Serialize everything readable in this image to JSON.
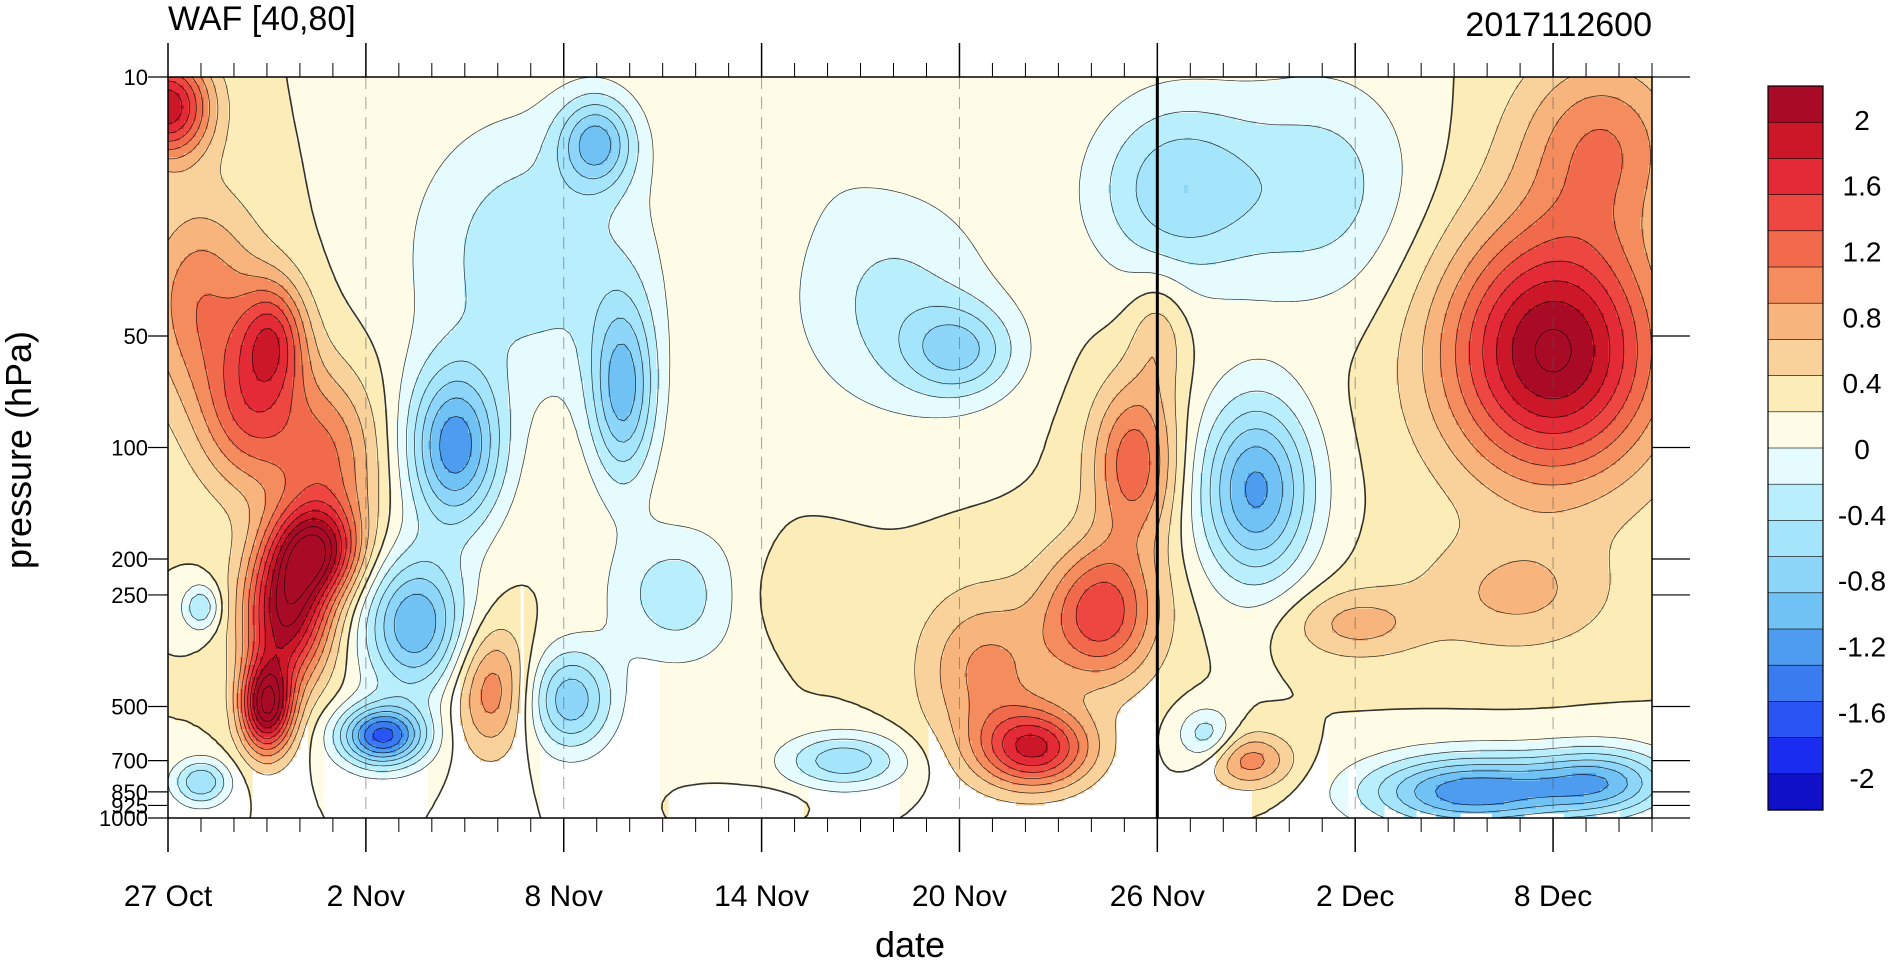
{
  "chart_data": {
    "type": "heatmap",
    "title_left": "WAF [40,80]",
    "title_right": "2017112600",
    "xlabel": "date",
    "ylabel": "pressure (hPa)",
    "x_ticks": [
      "27 Oct",
      "2 Nov",
      "8 Nov",
      "14 Nov",
      "20 Nov",
      "26 Nov",
      "2 Dec",
      "8 Dec"
    ],
    "x_tick_days": [
      0,
      6,
      12,
      18,
      24,
      30,
      36,
      42
    ],
    "x_range_days": [
      0,
      45
    ],
    "initialization_day": 30,
    "y_ticks": [
      "10",
      "50",
      "100",
      "200",
      "250",
      "500",
      "700",
      "850",
      "925",
      "1000"
    ],
    "y_tick_values": [
      10,
      50,
      100,
      200,
      250,
      500,
      700,
      850,
      925,
      1000
    ],
    "y_range": [
      10,
      1000
    ],
    "colorbar_labels": [
      "2",
      "1.6",
      "1.2",
      "0.8",
      "0.4",
      "0",
      "-0.4",
      "-0.8",
      "-1.2",
      "-1.6",
      "-2"
    ],
    "colorbar_label_values": [
      2,
      1.6,
      1.2,
      0.8,
      0.4,
      0,
      -0.4,
      -0.8,
      -1.2,
      -1.6,
      -2
    ],
    "levels": [
      -2.2,
      -2.0,
      -1.8,
      -1.6,
      -1.4,
      -1.2,
      -1.0,
      -0.8,
      -0.6,
      -0.4,
      -0.2,
      0,
      0.2,
      0.4,
      0.6,
      0.8,
      1.0,
      1.2,
      1.4,
      1.6,
      1.8,
      2.0,
      2.2
    ],
    "colors": [
      "#1010c8",
      "#1a2cf0",
      "#2a55f5",
      "#3a7cf0",
      "#4d9cf0",
      "#70c2f5",
      "#8ed6f9",
      "#a4e5fc",
      "#b9eefc",
      "#e6fbfd",
      "#fefce6",
      "#fbecb8",
      "#f9d19a",
      "#f7b47d",
      "#f48c5e",
      "#f16a4c",
      "#ee4742",
      "#e42a36",
      "#cc1729",
      "#a90b26"
    ],
    "features": [
      {
        "day": 0.0,
        "p": 12,
        "v": 1.55,
        "sx": 0.9,
        "sy": 0.22
      },
      {
        "day": 1.0,
        "p": 40,
        "v": 0.75,
        "sx": 1.3,
        "sy": 0.45
      },
      {
        "day": 2.5,
        "p": 80,
        "v": 0.9,
        "sx": 1.1,
        "sy": 0.35
      },
      {
        "day": 3.0,
        "p": 500,
        "v": 1.9,
        "sx": 0.55,
        "sy": 0.2
      },
      {
        "day": 3.6,
        "p": 280,
        "v": 1.75,
        "sx": 0.9,
        "sy": 0.3
      },
      {
        "day": 4.5,
        "p": 190,
        "v": 1.45,
        "sx": 0.9,
        "sy": 0.2
      },
      {
        "day": 3.2,
        "p": 50,
        "v": 0.95,
        "sx": 0.7,
        "sy": 0.25
      },
      {
        "day": 4.8,
        "p": 110,
        "v": 0.8,
        "sx": 1.1,
        "sy": 0.4
      },
      {
        "day": 1.0,
        "p": 270,
        "v": -0.6,
        "sx": 0.4,
        "sy": 0.1
      },
      {
        "day": 1.0,
        "p": 800,
        "v": -0.8,
        "sx": 0.6,
        "sy": 0.1
      },
      {
        "day": 6.5,
        "p": 600,
        "v": -1.65,
        "sx": 0.9,
        "sy": 0.13
      },
      {
        "day": 7.5,
        "p": 300,
        "v": -1.2,
        "sx": 1.1,
        "sy": 0.3
      },
      {
        "day": 8.7,
        "p": 100,
        "v": -1.3,
        "sx": 1.0,
        "sy": 0.35
      },
      {
        "day": 9.8,
        "p": 450,
        "v": 0.75,
        "sx": 0.8,
        "sy": 0.28
      },
      {
        "day": 12.2,
        "p": 480,
        "v": -0.95,
        "sx": 0.9,
        "sy": 0.22
      },
      {
        "day": 13.8,
        "p": 70,
        "v": -1.05,
        "sx": 0.7,
        "sy": 0.4
      },
      {
        "day": 13.0,
        "p": 15,
        "v": -0.95,
        "sx": 0.8,
        "sy": 0.2
      },
      {
        "day": 11.0,
        "p": 30,
        "v": -0.55,
        "sx": 2.5,
        "sy": 0.6
      },
      {
        "day": 15.5,
        "p": 250,
        "v": -0.55,
        "sx": 1.5,
        "sy": 0.3
      },
      {
        "day": 19.5,
        "p": 15,
        "v": -0.1,
        "sx": 1.6,
        "sy": 0.35
      },
      {
        "day": 18.5,
        "p": 250,
        "v": 0.15,
        "sx": 1.8,
        "sy": 0.22
      },
      {
        "day": 20.5,
        "p": 700,
        "v": -0.75,
        "sx": 1.3,
        "sy": 0.12
      },
      {
        "day": 18.0,
        "p": 900,
        "v": 0.2,
        "sx": 0.8,
        "sy": 0.05
      },
      {
        "day": 24.0,
        "p": 55,
        "v": -0.7,
        "sx": 1.2,
        "sy": 0.2
      },
      {
        "day": 22.0,
        "p": 40,
        "v": -0.45,
        "sx": 2.2,
        "sy": 0.5
      },
      {
        "day": 24.8,
        "p": 400,
        "v": 0.65,
        "sx": 1.4,
        "sy": 0.35
      },
      {
        "day": 26.3,
        "p": 650,
        "v": 1.35,
        "sx": 1.2,
        "sy": 0.17
      },
      {
        "day": 28.3,
        "p": 280,
        "v": 1.15,
        "sx": 1.2,
        "sy": 0.3
      },
      {
        "day": 29.3,
        "p": 110,
        "v": 0.95,
        "sx": 0.9,
        "sy": 0.35
      },
      {
        "day": 30.0,
        "p": 50,
        "v": 0.35,
        "sx": 0.6,
        "sy": 0.25
      },
      {
        "day": 30.6,
        "p": 20,
        "v": -0.75,
        "sx": 1.8,
        "sy": 0.4
      },
      {
        "day": 31.5,
        "p": 600,
        "v": -0.55,
        "sx": 0.6,
        "sy": 0.12
      },
      {
        "day": 32.8,
        "p": 700,
        "v": 0.7,
        "sx": 0.9,
        "sy": 0.12
      },
      {
        "day": 33.0,
        "p": 130,
        "v": -1.25,
        "sx": 1.2,
        "sy": 0.4
      },
      {
        "day": 35.0,
        "p": 20,
        "v": -0.5,
        "sx": 2.0,
        "sy": 0.5
      },
      {
        "day": 36.0,
        "p": 300,
        "v": 0.45,
        "sx": 1.4,
        "sy": 0.15
      },
      {
        "day": 38.0,
        "p": 250,
        "v": 0.05,
        "sx": 2.5,
        "sy": 0.3
      },
      {
        "day": 39.5,
        "p": 850,
        "v": -1.35,
        "sx": 2.2,
        "sy": 0.16
      },
      {
        "day": 43.5,
        "p": 800,
        "v": -1.0,
        "sx": 1.5,
        "sy": 0.15
      },
      {
        "day": 42.0,
        "p": 55,
        "v": 1.85,
        "sx": 2.3,
        "sy": 0.55
      },
      {
        "day": 43.5,
        "p": 15,
        "v": 0.75,
        "sx": 1.8,
        "sy": 0.4
      },
      {
        "day": 41.0,
        "p": 250,
        "v": 0.4,
        "sx": 2.0,
        "sy": 0.25
      }
    ]
  }
}
